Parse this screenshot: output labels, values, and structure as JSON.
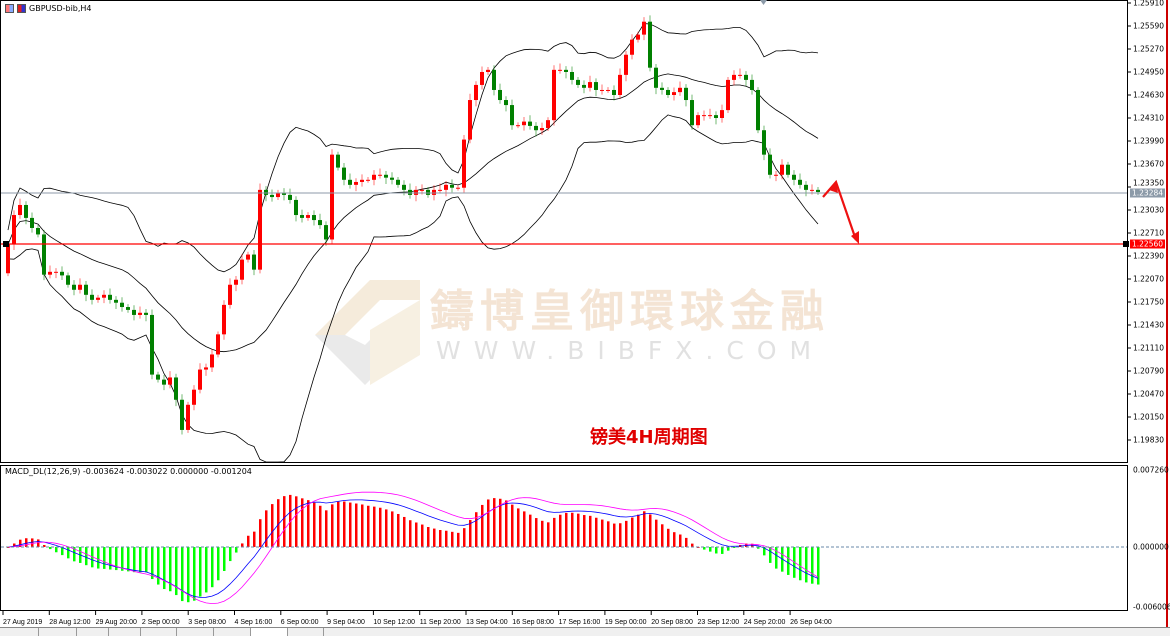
{
  "window": {
    "title": "GBPUSD-bib,H4",
    "icons": [
      "chart-window-icon",
      "symbol-icon"
    ]
  },
  "colors": {
    "bull": "#ff0000",
    "bear": "#008000",
    "hist_up": "#ff0000",
    "hist_down": "#00ff00",
    "signal_line": "#0000ff",
    "second_line": "#ff00ff",
    "support_line": "#ff0000",
    "bid_line": "#8c9aa8"
  },
  "price_axis": {
    "ticks": [
      "1.25910",
      "1.25590",
      "1.25270",
      "1.24950",
      "1.24630",
      "1.24310",
      "1.23990",
      "1.23670",
      "1.23350",
      "1.23030",
      "1.22710",
      "1.22390",
      "1.22070",
      "1.21750",
      "1.21430",
      "1.21110",
      "1.20790",
      "1.20470",
      "1.20150",
      "1.19830"
    ],
    "current_price": "1.23284",
    "support_level": "1.22560"
  },
  "macd": {
    "label": "MACD_DL(12,26,9) -0.003624 -0.003022 0.000000 -0.001204",
    "ticks": [
      "0.007260",
      "0.000000",
      "-0.006006"
    ]
  },
  "time_axis": [
    "27 Aug 2019",
    "28 Aug 12:00",
    "29 Aug 20:00",
    "2 Sep 00:00",
    "3 Sep 08:00",
    "4 Sep 16:00",
    "6 Sep 00:00",
    "9 Sep 04:00",
    "10 Sep 12:00",
    "11 Sep 20:00",
    "13 Sep 04:00",
    "16 Sep 08:00",
    "17 Sep 16:00",
    "19 Sep 00:00",
    "20 Sep 08:00",
    "23 Sep 12:00",
    "24 Sep 20:00",
    "26 Sep 04:00"
  ],
  "annotation": "镑美4H周期图",
  "watermark": {
    "cn": "鑄博皇御環球金融",
    "url": "WWW.BIBFX.COM"
  },
  "chart_data": {
    "type": "candlestick",
    "symbol": "GBPUSD-bib,H4",
    "ylim": [
      1.1983,
      1.2591
    ],
    "indicators": [
      "Bollinger Bands",
      "MACD_DL(12,26,9)"
    ],
    "closes": [
      1.2255,
      1.2296,
      1.231,
      1.2292,
      1.2278,
      1.2269,
      1.2213,
      1.2217,
      1.2217,
      1.2212,
      1.2199,
      1.2192,
      1.2199,
      1.2185,
      1.2178,
      1.2181,
      1.2185,
      1.2178,
      1.2174,
      1.2168,
      1.2164,
      1.2157,
      1.216,
      1.2157,
      1.2074,
      1.2067,
      1.206,
      1.207,
      1.2039,
      1.1997,
      1.2032,
      1.2053,
      1.2081,
      1.2084,
      1.2102,
      1.213,
      1.2171,
      1.2199,
      1.2206,
      1.2234,
      1.2241,
      1.222,
      1.2331,
      1.2324,
      1.2321,
      1.2327,
      1.2324,
      1.2317,
      1.2296,
      1.2292,
      1.2296,
      1.2289,
      1.2282,
      1.2262,
      1.238,
      1.2362,
      1.2345,
      1.2338,
      1.2342,
      1.2345,
      1.2345,
      1.2352,
      1.2352,
      1.2348,
      1.2345,
      1.2338,
      1.2331,
      1.2324,
      1.2331,
      1.2331,
      1.2324,
      1.2331,
      1.2331,
      1.2338,
      1.2334,
      1.2334,
      1.2401,
      1.2456,
      1.2477,
      1.2495,
      1.2498,
      1.247,
      1.2456,
      1.2449,
      1.2421,
      1.2421,
      1.2426,
      1.242,
      1.2414,
      1.2417,
      1.2428,
      1.2498,
      1.2498,
      1.2495,
      1.2484,
      1.2477,
      1.2473,
      1.2481,
      1.247,
      1.247,
      1.247,
      1.2463,
      1.2491,
      1.2519,
      1.254,
      1.2547,
      1.2565,
      1.2501,
      1.2473,
      1.247,
      1.2463,
      1.2467,
      1.2473,
      1.2456,
      1.2421,
      1.2435,
      1.2435,
      1.2435,
      1.2431,
      1.2442,
      1.2484,
      1.2491,
      1.2491,
      1.2484,
      1.247,
      1.2414,
      1.238,
      1.2352,
      1.2352,
      1.2366,
      1.2352,
      1.2345,
      1.2338,
      1.2331,
      1.2331,
      1.2328
    ],
    "first_open": 1.2215,
    "forecast": "up to ~1.2340 then down to 1.2256"
  }
}
